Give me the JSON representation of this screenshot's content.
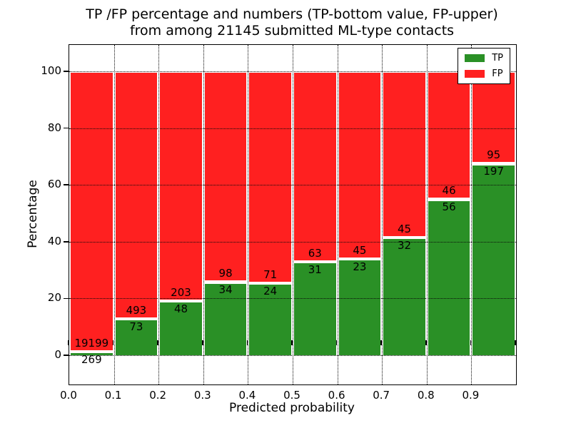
{
  "figure": {
    "title_line1": "TP /FP percentage and numbers (TP-bottom value, FP-upper)",
    "title_line2": "from among 21145 submitted ML-type contacts",
    "xlabel": "Predicted probability",
    "ylabel": "Percentage"
  },
  "legend": {
    "items": [
      {
        "label": "TP",
        "color": "#2A9026"
      },
      {
        "label": "FP",
        "color": "#FF2020"
      }
    ]
  },
  "chart_data": {
    "type": "bar",
    "stacked": true,
    "normalized": "each bar totals 100%",
    "title": "TP /FP percentage and numbers (TP-bottom value, FP-upper)\nfrom among 21145 submitted ML-type contacts",
    "xlabel": "Predicted probability",
    "ylabel": "Percentage",
    "total_contacts": 21145,
    "bins": [
      "0.0-0.1",
      "0.1-0.2",
      "0.2-0.3",
      "0.3-0.4",
      "0.4-0.5",
      "0.5-0.6",
      "0.6-0.7",
      "0.7-0.8",
      "0.8-0.9",
      "0.9-1.0"
    ],
    "series": [
      {
        "name": "TP",
        "color": "#2A9026",
        "values": [
          269,
          73,
          48,
          34,
          24,
          31,
          23,
          32,
          56,
          197
        ]
      },
      {
        "name": "FP",
        "color": "#FF2020",
        "values": [
          19199,
          493,
          203,
          98,
          71,
          63,
          45,
          45,
          46,
          95
        ]
      }
    ],
    "tp_percent": [
      1.38,
      12.9,
      19.12,
      25.76,
      25.26,
      32.98,
      33.82,
      41.56,
      54.9,
      67.47
    ],
    "xtick_labels": [
      "0.0",
      "0.1",
      "0.2",
      "0.3",
      "0.4",
      "0.5",
      "0.6",
      "0.7",
      "0.8",
      "0.9"
    ],
    "ytick_values": [
      0,
      20,
      40,
      60,
      80,
      100
    ],
    "xlim": [
      0.0,
      1.0
    ],
    "ylim_percent": [
      0,
      100
    ],
    "grid": "dotted black at every x/y tick",
    "legend_position": "upper right"
  }
}
